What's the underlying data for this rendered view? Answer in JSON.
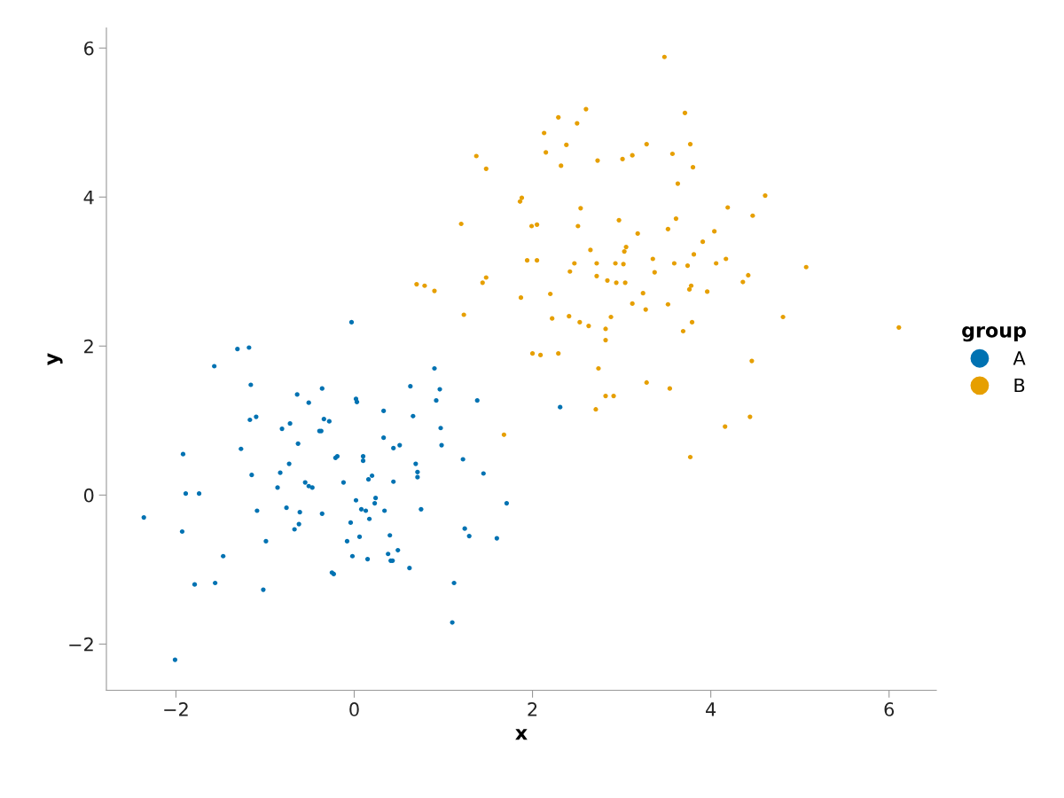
{
  "chart_data": {
    "type": "scatter",
    "xlabel": "x",
    "ylabel": "y",
    "legend_title": "group",
    "legend": "right",
    "grid": false,
    "marker": "circle",
    "xlim": [
      -2.78,
      6.53
    ],
    "ylim": [
      -2.62,
      6.27
    ],
    "xticks": [
      -2,
      0,
      2,
      4,
      6
    ],
    "yticks": [
      -2,
      0,
      2,
      4,
      6
    ],
    "series": [
      {
        "name": "A",
        "color": "#0072b2",
        "x": [
          -2.36,
          -2.01,
          -1.93,
          -1.92,
          -1.89,
          -1.79,
          -1.74,
          -1.57,
          -1.56,
          -1.47,
          -1.31,
          -1.27,
          -1.18,
          -1.16,
          -1.15,
          -1.17,
          -1.1,
          -1.09,
          -1.02,
          -0.99,
          -0.86,
          -0.83,
          -0.81,
          -0.76,
          -0.73,
          -0.72,
          -0.67,
          -0.64,
          -0.63,
          -0.61,
          -0.62,
          -0.55,
          -0.51,
          -0.51,
          -0.47,
          -0.39,
          -0.36,
          -0.37,
          -0.34,
          -0.36,
          -0.28,
          -0.23,
          -0.25,
          -0.21,
          -0.19,
          -0.12,
          -0.08,
          -0.04,
          -0.03,
          -0.02,
          0.02,
          0.03,
          0.02,
          0.06,
          0.08,
          0.1,
          0.1,
          0.13,
          0.15,
          0.16,
          0.17,
          0.2,
          0.23,
          0.24,
          0.33,
          0.33,
          0.34,
          0.38,
          0.4,
          0.41,
          0.43,
          0.44,
          0.44,
          0.49,
          0.51,
          0.62,
          0.63,
          0.66,
          0.69,
          0.71,
          0.71,
          0.75,
          0.9,
          0.92,
          0.96,
          0.97,
          0.98,
          1.38,
          1.12,
          1.1,
          1.22,
          1.24,
          1.29,
          1.45,
          1.6,
          1.71,
          2.31
        ],
        "values": [
          -0.3,
          -2.21,
          -0.49,
          0.55,
          0.02,
          -1.2,
          0.02,
          1.73,
          -1.18,
          -0.82,
          1.96,
          0.62,
          1.98,
          1.48,
          0.27,
          1.01,
          1.05,
          -0.21,
          -1.27,
          -0.62,
          0.1,
          0.3,
          0.89,
          -0.17,
          0.42,
          0.96,
          -0.46,
          1.35,
          0.69,
          -0.23,
          -0.39,
          0.17,
          1.24,
          0.12,
          0.1,
          0.86,
          1.43,
          0.86,
          1.02,
          -0.25,
          0.99,
          -1.06,
          -1.04,
          0.5,
          0.52,
          0.17,
          -0.62,
          -0.37,
          2.32,
          -0.82,
          1.29,
          1.25,
          -0.07,
          -0.56,
          -0.19,
          0.52,
          0.46,
          -0.21,
          -0.86,
          0.21,
          -0.32,
          0.26,
          -0.11,
          -0.04,
          0.77,
          1.13,
          -0.21,
          -0.79,
          -0.54,
          -0.88,
          -0.88,
          0.18,
          0.63,
          -0.74,
          0.67,
          -0.98,
          1.46,
          1.06,
          0.42,
          0.31,
          0.24,
          -0.19,
          1.7,
          1.27,
          1.42,
          0.9,
          0.67,
          1.27,
          -1.18,
          -1.71,
          0.48,
          -0.45,
          -0.55,
          0.29,
          -0.58,
          -0.11,
          1.18
        ]
      },
      {
        "name": "B",
        "color": "#e69f00",
        "x": [
          0.7,
          0.79,
          0.9,
          1.2,
          1.23,
          1.37,
          1.44,
          1.48,
          1.48,
          1.68,
          1.86,
          1.88,
          1.87,
          1.94,
          1.99,
          2.0,
          2.05,
          2.05,
          2.09,
          2.13,
          2.15,
          2.2,
          2.22,
          2.29,
          2.29,
          2.32,
          2.38,
          2.41,
          2.42,
          2.47,
          2.5,
          2.51,
          2.53,
          2.54,
          2.6,
          2.63,
          2.65,
          2.72,
          2.73,
          2.72,
          2.74,
          2.71,
          2.82,
          2.82,
          2.82,
          2.84,
          2.88,
          2.91,
          2.93,
          2.94,
          2.97,
          3.01,
          3.02,
          3.03,
          3.04,
          3.05,
          3.12,
          3.12,
          3.18,
          3.24,
          3.27,
          3.28,
          3.28,
          3.35,
          3.37,
          3.48,
          3.52,
          3.52,
          3.54,
          3.57,
          3.59,
          3.61,
          3.63,
          3.69,
          3.71,
          3.74,
          3.76,
          3.77,
          3.77,
          3.78,
          3.79,
          3.8,
          3.81,
          3.91,
          3.96,
          4.04,
          4.06,
          4.16,
          4.17,
          4.19,
          4.36,
          4.42,
          4.44,
          4.46,
          4.47,
          4.61,
          4.81,
          5.07,
          6.11
        ],
        "values": [
          2.83,
          2.81,
          2.74,
          3.64,
          2.42,
          4.55,
          2.85,
          2.92,
          4.38,
          0.81,
          3.94,
          3.99,
          2.65,
          3.15,
          3.61,
          1.9,
          3.63,
          3.15,
          1.88,
          4.86,
          4.6,
          2.7,
          2.37,
          1.9,
          5.07,
          4.42,
          4.7,
          2.4,
          3.0,
          3.11,
          4.99,
          3.61,
          2.32,
          3.85,
          5.18,
          2.27,
          3.29,
          2.94,
          4.49,
          3.11,
          1.7,
          1.15,
          2.23,
          2.08,
          1.33,
          2.88,
          2.39,
          1.33,
          3.11,
          2.85,
          3.69,
          4.51,
          3.1,
          3.27,
          2.85,
          3.33,
          2.57,
          4.56,
          3.51,
          2.71,
          2.49,
          4.71,
          1.51,
          3.17,
          2.99,
          5.88,
          2.56,
          3.57,
          1.43,
          4.58,
          3.11,
          3.71,
          4.18,
          2.2,
          5.13,
          3.08,
          2.76,
          4.71,
          0.51,
          2.81,
          2.32,
          4.4,
          3.23,
          3.4,
          2.73,
          3.54,
          3.11,
          0.92,
          3.17,
          3.86,
          2.86,
          2.95,
          1.05,
          1.8,
          3.75,
          4.02,
          2.39,
          3.06,
          2.25
        ]
      }
    ]
  }
}
